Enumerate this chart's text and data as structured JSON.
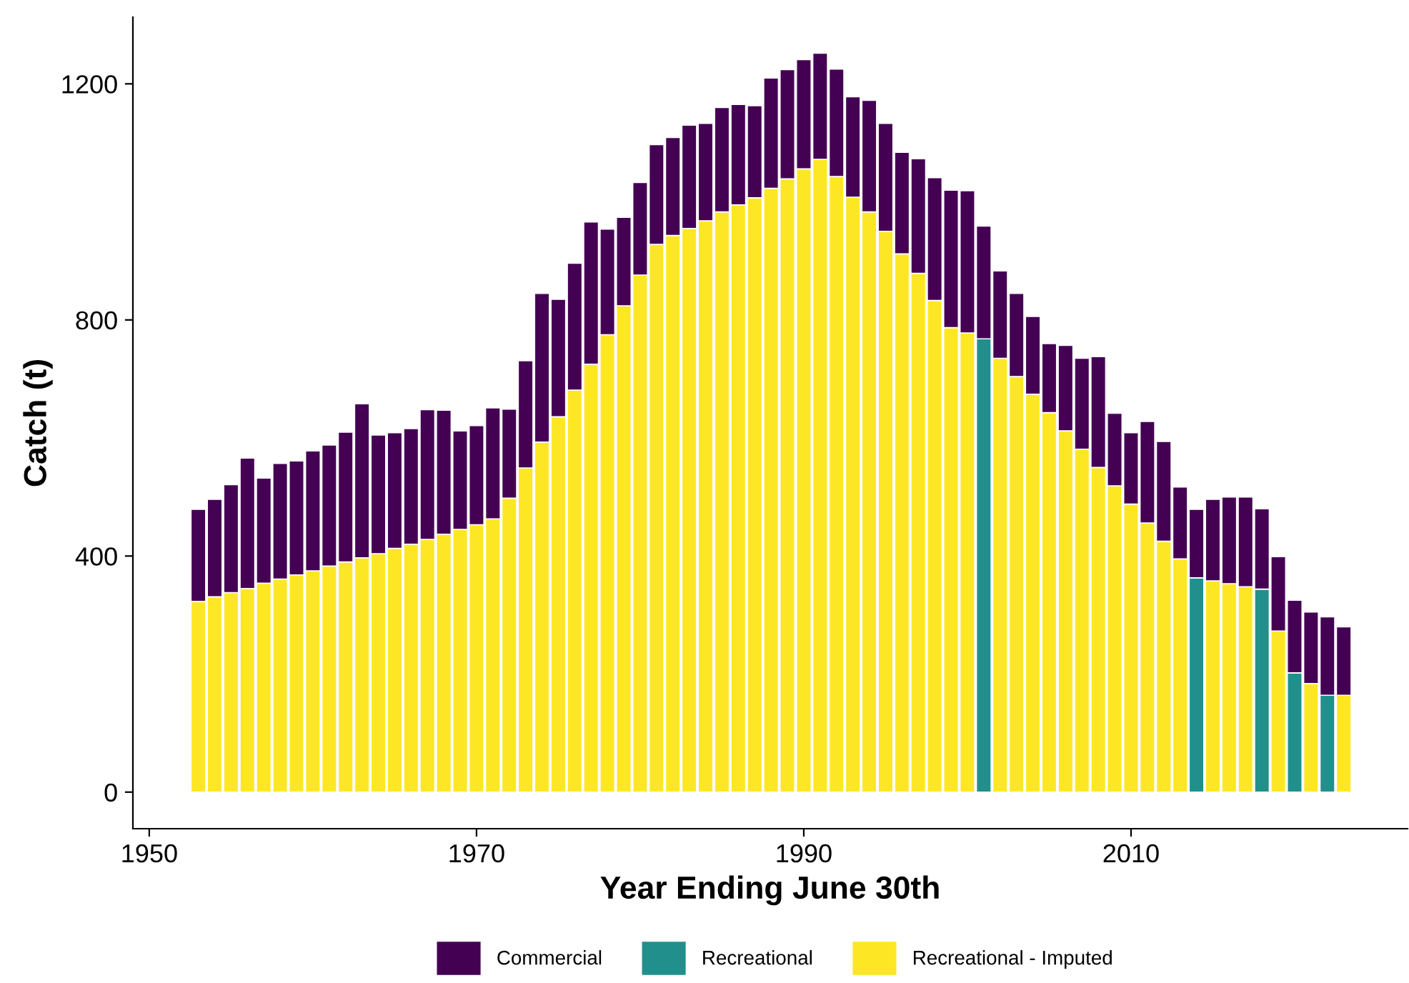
{
  "chart_data": {
    "type": "bar",
    "stacked": true,
    "xlabel": "Year Ending June 30th",
    "ylabel": "Catch (t)",
    "x": [
      1953,
      1954,
      1955,
      1956,
      1957,
      1958,
      1959,
      1960,
      1961,
      1962,
      1963,
      1964,
      1965,
      1966,
      1967,
      1968,
      1969,
      1970,
      1971,
      1972,
      1973,
      1974,
      1975,
      1976,
      1977,
      1978,
      1979,
      1980,
      1981,
      1982,
      1983,
      1984,
      1985,
      1986,
      1987,
      1988,
      1989,
      1990,
      1991,
      1992,
      1993,
      1994,
      1995,
      1996,
      1997,
      1998,
      1999,
      2000,
      2001,
      2002,
      2003,
      2004,
      2005,
      2006,
      2007,
      2008,
      2009,
      2010,
      2011,
      2012,
      2013,
      2014,
      2015,
      2016,
      2017,
      2018,
      2019,
      2020,
      2021,
      2022,
      2023
    ],
    "series": [
      {
        "name": "Recreational - Imputed",
        "color": "#fde725",
        "values": [
          323,
          331,
          338,
          345,
          354,
          361,
          368,
          375,
          383,
          390,
          397,
          404,
          413,
          420,
          428,
          437,
          445,
          453,
          463,
          498,
          549,
          593,
          636,
          681,
          725,
          775,
          824,
          876,
          928,
          943,
          955,
          968,
          983,
          995,
          1007,
          1023,
          1039,
          1056,
          1072,
          1043,
          1008,
          983,
          950,
          912,
          879,
          833,
          787,
          778,
          null,
          735,
          704,
          674,
          643,
          612,
          581,
          550,
          519,
          488,
          456,
          425,
          395,
          null,
          358,
          353,
          348,
          null,
          273,
          null,
          184,
          null,
          164
        ]
      },
      {
        "name": "Recreational",
        "color": "#21908c",
        "values": [
          null,
          null,
          null,
          null,
          null,
          null,
          null,
          null,
          null,
          null,
          null,
          null,
          null,
          null,
          null,
          null,
          null,
          null,
          null,
          null,
          null,
          null,
          null,
          null,
          null,
          null,
          null,
          null,
          null,
          null,
          null,
          null,
          null,
          null,
          null,
          null,
          null,
          null,
          null,
          null,
          null,
          null,
          null,
          null,
          null,
          null,
          null,
          null,
          768,
          null,
          null,
          null,
          null,
          null,
          null,
          null,
          null,
          null,
          null,
          null,
          null,
          363,
          null,
          null,
          null,
          344,
          null,
          202,
          null,
          164,
          null
        ]
      },
      {
        "name": "Commercial",
        "color": "#440154",
        "values": [
          156,
          165,
          183,
          221,
          178,
          196,
          193,
          203,
          205,
          220,
          261,
          201,
          196,
          196,
          220,
          210,
          167,
          168,
          188,
          151,
          182,
          252,
          199,
          215,
          241,
          179,
          150,
          157,
          169,
          166,
          175,
          165,
          177,
          170,
          156,
          187,
          185,
          185,
          180,
          182,
          170,
          189,
          183,
          172,
          194,
          208,
          233,
          241,
          191,
          148,
          141,
          132,
          117,
          145,
          154,
          188,
          123,
          121,
          172,
          169,
          122,
          116,
          138,
          147,
          152,
          136,
          126,
          123,
          121,
          133,
          116
        ]
      }
    ],
    "xlim": [
      1949,
      2026.9
    ],
    "xticks": [
      1950,
      1970,
      1990,
      2010
    ],
    "ylim": [
      -62,
      1313
    ],
    "yticks": [
      0,
      400,
      800,
      1200
    ],
    "grid": false,
    "legend": "bottom"
  }
}
